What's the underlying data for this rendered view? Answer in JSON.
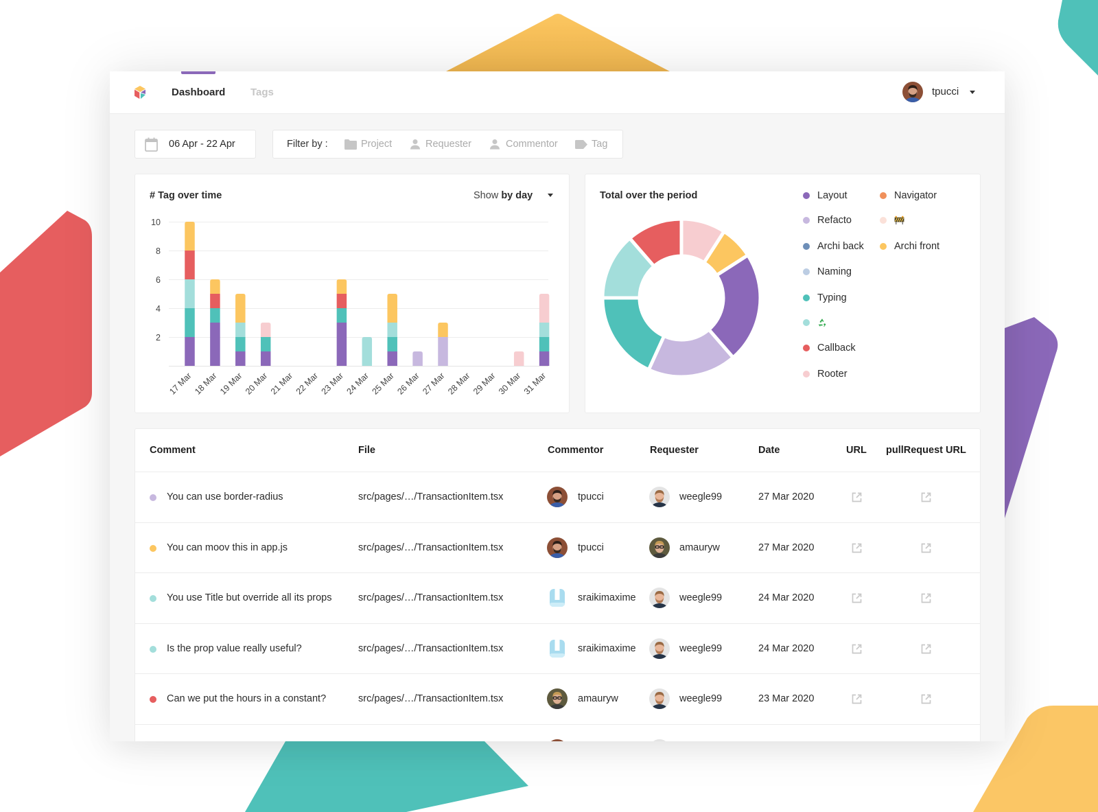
{
  "header": {
    "logo_icon": "cube-logo-icon",
    "tabs": [
      {
        "label": "Dashboard",
        "active": true
      },
      {
        "label": "Tags",
        "active": false
      }
    ],
    "user": {
      "name": "tpucci",
      "avatar": "tpucci"
    }
  },
  "filters": {
    "date_range": "06 Apr - 22 Apr",
    "date_icon": "calendar-icon",
    "filter_by_label": "Filter by :",
    "items": [
      {
        "label": "Project",
        "icon": "folder-icon"
      },
      {
        "label": "Requester",
        "icon": "user-icon"
      },
      {
        "label": "Commentor",
        "icon": "user-icon"
      },
      {
        "label": "Tag",
        "icon": "tag-icon"
      }
    ]
  },
  "tag_over_time": {
    "title": "# Tag over time",
    "show_prefix": "Show",
    "show_value": "by day"
  },
  "total_over_period": {
    "title": "Total over the period",
    "legend": [
      {
        "label": "Layout",
        "color": "#8b68b9",
        "col": 0,
        "row": 0
      },
      {
        "label": "Refacto",
        "color": "#c7b8df",
        "col": 0,
        "row": 1
      },
      {
        "label": "Archi back",
        "color": "#6e8fb8",
        "col": 0,
        "row": 2
      },
      {
        "label": "Naming",
        "color": "#bccde3",
        "col": 0,
        "row": 3
      },
      {
        "label": "Typing",
        "color": "#4fc1b9",
        "col": 0,
        "row": 4
      },
      {
        "label": "♻️",
        "icon": "recycle-icon",
        "color": "#a3dedb",
        "col": 0,
        "row": 5
      },
      {
        "label": "Callback",
        "color": "#e65e5f",
        "col": 0,
        "row": 6
      },
      {
        "label": "Rooter",
        "color": "#f7cdd0",
        "col": 0,
        "row": 7
      },
      {
        "label": "Navigator",
        "color": "#f0905b",
        "col": 1,
        "row": 0
      },
      {
        "label": "🚧",
        "icon": "construction-icon",
        "color": "#fbe1d9",
        "col": 1,
        "row": 1
      },
      {
        "label": "Archi front",
        "color": "#fcc660",
        "col": 1,
        "row": 2
      }
    ]
  },
  "table": {
    "columns": [
      "Comment",
      "File",
      "Commentor",
      "Requester",
      "Date",
      "URL",
      "pullRequest URL"
    ],
    "rows": [
      {
        "tag_color": "#c7b8df",
        "comment": "You can use border-radius",
        "file": "src/pages/…/TransactionItem.tsx",
        "commentor": {
          "name": "tpucci",
          "avatar": "tpucci"
        },
        "requester": {
          "name": "weegle99",
          "avatar": "weegle99"
        },
        "date": "27 Mar 2020"
      },
      {
        "tag_color": "#fcc660",
        "comment": "You can moov this in app.js",
        "file": "src/pages/…/TransactionItem.tsx",
        "commentor": {
          "name": "tpucci",
          "avatar": "tpucci"
        },
        "requester": {
          "name": "amauryw",
          "avatar": "amauryw"
        },
        "date": "27 Mar 2020"
      },
      {
        "tag_color": "#a3dedb",
        "comment": "You use Title but override all its props",
        "file": "src/pages/…/TransactionItem.tsx",
        "commentor": {
          "name": "sraikimaxime",
          "avatar": "sraikimaxime"
        },
        "requester": {
          "name": "weegle99",
          "avatar": "weegle99"
        },
        "date": "24 Mar 2020"
      },
      {
        "tag_color": "#a3dedb",
        "comment": "Is the prop value really useful?",
        "file": "src/pages/…/TransactionItem.tsx",
        "commentor": {
          "name": "sraikimaxime",
          "avatar": "sraikimaxime"
        },
        "requester": {
          "name": "weegle99",
          "avatar": "weegle99"
        },
        "date": "24 Mar 2020"
      },
      {
        "tag_color": "#e65e5f",
        "comment": "Can we put the hours in a constant?",
        "file": "src/pages/…/TransactionItem.tsx",
        "commentor": {
          "name": "amauryw",
          "avatar": "amauryw"
        },
        "requester": {
          "name": "weegle99",
          "avatar": "weegle99"
        },
        "date": "23 Mar 2020"
      },
      {
        "partial": true,
        "commentor": {
          "avatar": "tpucci"
        },
        "requester": {
          "avatar": "weegle99"
        }
      }
    ]
  },
  "avatars": {
    "tpucci": {
      "type": "photo",
      "bg": "#8c4f36",
      "skin": "#d6a185",
      "hair": "#2e2019",
      "beard": "#3b2a20",
      "shirt": "#3a5ea8"
    },
    "weegle99": {
      "type": "photo",
      "bg": "#e4e4e4",
      "skin": "#e8b79a",
      "hair": "#9a6a44",
      "beard": "#b07a55",
      "shirt": "#263447"
    },
    "amauryw": {
      "type": "photo",
      "bg": "#5e5a3e",
      "skin": "#dcae92",
      "hair": "#c49a55",
      "glasses": "#1e1e1e",
      "shirt": "#3b3b3b"
    },
    "sraikimaxime": {
      "type": "robot",
      "bg": "#a9dcef",
      "band": "#cdedf8"
    }
  },
  "colors": {
    "accent": "#8b68b9",
    "page_bg": "#f6f6f6",
    "deco_yellow": "#fcc660",
    "deco_teal": "#4fc1b9",
    "deco_red": "#e65e5f",
    "deco_purple": "#8b68b9"
  },
  "chart_data": [
    {
      "type": "bar",
      "stacked": true,
      "title": "# Tag over time",
      "xlabel": "",
      "ylabel": "",
      "ylim": [
        0,
        10
      ],
      "y_ticks": [
        2,
        4,
        6,
        8,
        10
      ],
      "grid": true,
      "categories": [
        "17 Mar",
        "18 Mar",
        "19 Mar",
        "20 Mar",
        "21 Mar",
        "22 Mar",
        "23 Mar",
        "24 Mar",
        "25 Mar",
        "26 Mar",
        "27 Mar",
        "28 Mar",
        "29 Mar",
        "30 Mar",
        "31 Mar"
      ],
      "series": [
        {
          "name": "Layout",
          "color": "#8b68b9",
          "values": [
            2,
            3,
            1,
            1,
            0,
            0,
            3,
            0,
            1,
            0,
            0,
            0,
            0,
            0,
            1
          ]
        },
        {
          "name": "Refacto",
          "color": "#c7b8df",
          "values": [
            0,
            0,
            0,
            0,
            0,
            0,
            0,
            0,
            0,
            1,
            2,
            0,
            0,
            0,
            0
          ]
        },
        {
          "name": "Typing",
          "color": "#4fc1b9",
          "values": [
            2,
            1,
            1,
            1,
            0,
            0,
            1,
            0,
            1,
            0,
            0,
            0,
            0,
            0,
            1
          ]
        },
        {
          "name": "♻️",
          "color": "#a3dedb",
          "values": [
            2,
            0,
            1,
            0,
            0,
            0,
            0,
            2,
            1,
            0,
            0,
            0,
            0,
            0,
            1
          ]
        },
        {
          "name": "Callback",
          "color": "#e65e5f",
          "values": [
            2,
            1,
            0,
            0,
            0,
            0,
            1,
            0,
            0,
            0,
            0,
            0,
            0,
            0,
            0
          ]
        },
        {
          "name": "Rooter",
          "color": "#f7cdd0",
          "values": [
            0,
            0,
            0,
            1,
            0,
            0,
            0,
            0,
            0,
            0,
            0,
            0,
            0,
            1,
            2
          ]
        },
        {
          "name": "Archi front",
          "color": "#fcc660",
          "values": [
            2,
            1,
            2,
            0,
            0,
            0,
            1,
            0,
            2,
            0,
            1,
            0,
            0,
            0,
            0
          ]
        }
      ]
    },
    {
      "type": "pie",
      "donut": true,
      "title": "Total over the period",
      "legend_position": "right",
      "slices": [
        {
          "label": "Rooter",
          "value": 4,
          "color": "#f7cdd0"
        },
        {
          "label": "Archi front",
          "value": 3,
          "color": "#fcc660"
        },
        {
          "label": "Layout",
          "value": 10,
          "color": "#8b68b9"
        },
        {
          "label": "Refacto",
          "value": 8,
          "color": "#c7b8df"
        },
        {
          "label": "Typing",
          "value": 8,
          "color": "#4fc1b9"
        },
        {
          "label": "♻️",
          "value": 6,
          "color": "#a3dedb"
        },
        {
          "label": "Callback",
          "value": 5,
          "color": "#e65e5f"
        },
        {
          "label": "Archi back",
          "value": 0,
          "color": "#6e8fb8"
        },
        {
          "label": "Naming",
          "value": 0,
          "color": "#bccde3"
        },
        {
          "label": "Navigator",
          "value": 0,
          "color": "#f0905b"
        },
        {
          "label": "🚧",
          "value": 0,
          "color": "#fbe1d9"
        }
      ]
    }
  ]
}
